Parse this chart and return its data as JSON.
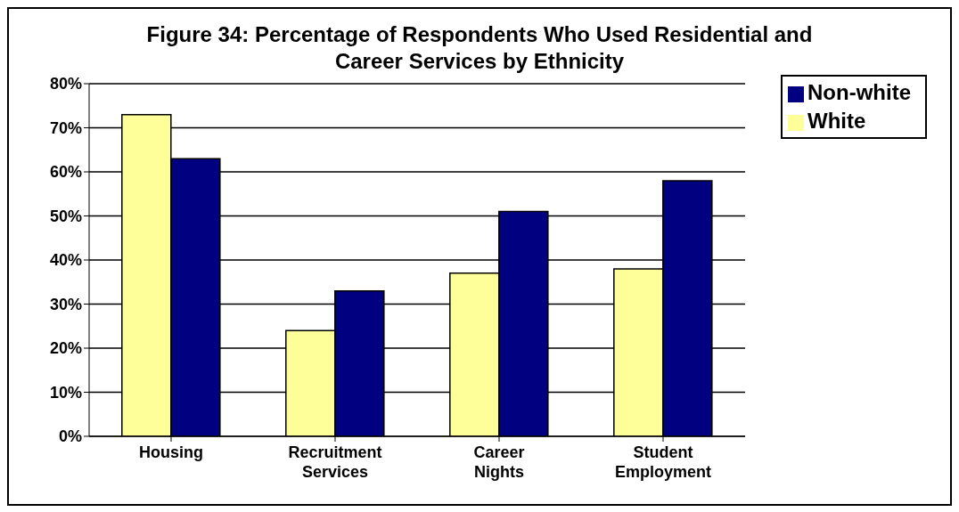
{
  "chart_data": {
    "type": "bar",
    "title": "Figure 34: Percentage of Respondents Who Used Residential and Career Services by Ethnicity",
    "categories": [
      "Housing",
      "Recruitment Services",
      "Career Nights",
      "Student Employment"
    ],
    "series": [
      {
        "name": "White",
        "color": "#ffff99",
        "values": [
          73,
          24,
          37,
          38
        ]
      },
      {
        "name": "Non-white",
        "color": "#000080",
        "values": [
          63,
          33,
          51,
          58
        ]
      }
    ],
    "ylim": [
      0,
      80
    ],
    "yticks": [
      {
        "value": 0,
        "label": "0%"
      },
      {
        "value": 10,
        "label": "10%"
      },
      {
        "value": 20,
        "label": "20%"
      },
      {
        "value": 30,
        "label": "30%"
      },
      {
        "value": 40,
        "label": "40%"
      },
      {
        "value": 50,
        "label": "50%"
      },
      {
        "value": 60,
        "label": "60%"
      },
      {
        "value": 70,
        "label": "70%"
      },
      {
        "value": 80,
        "label": "80%"
      }
    ],
    "grid": "y",
    "legend": "top right"
  }
}
